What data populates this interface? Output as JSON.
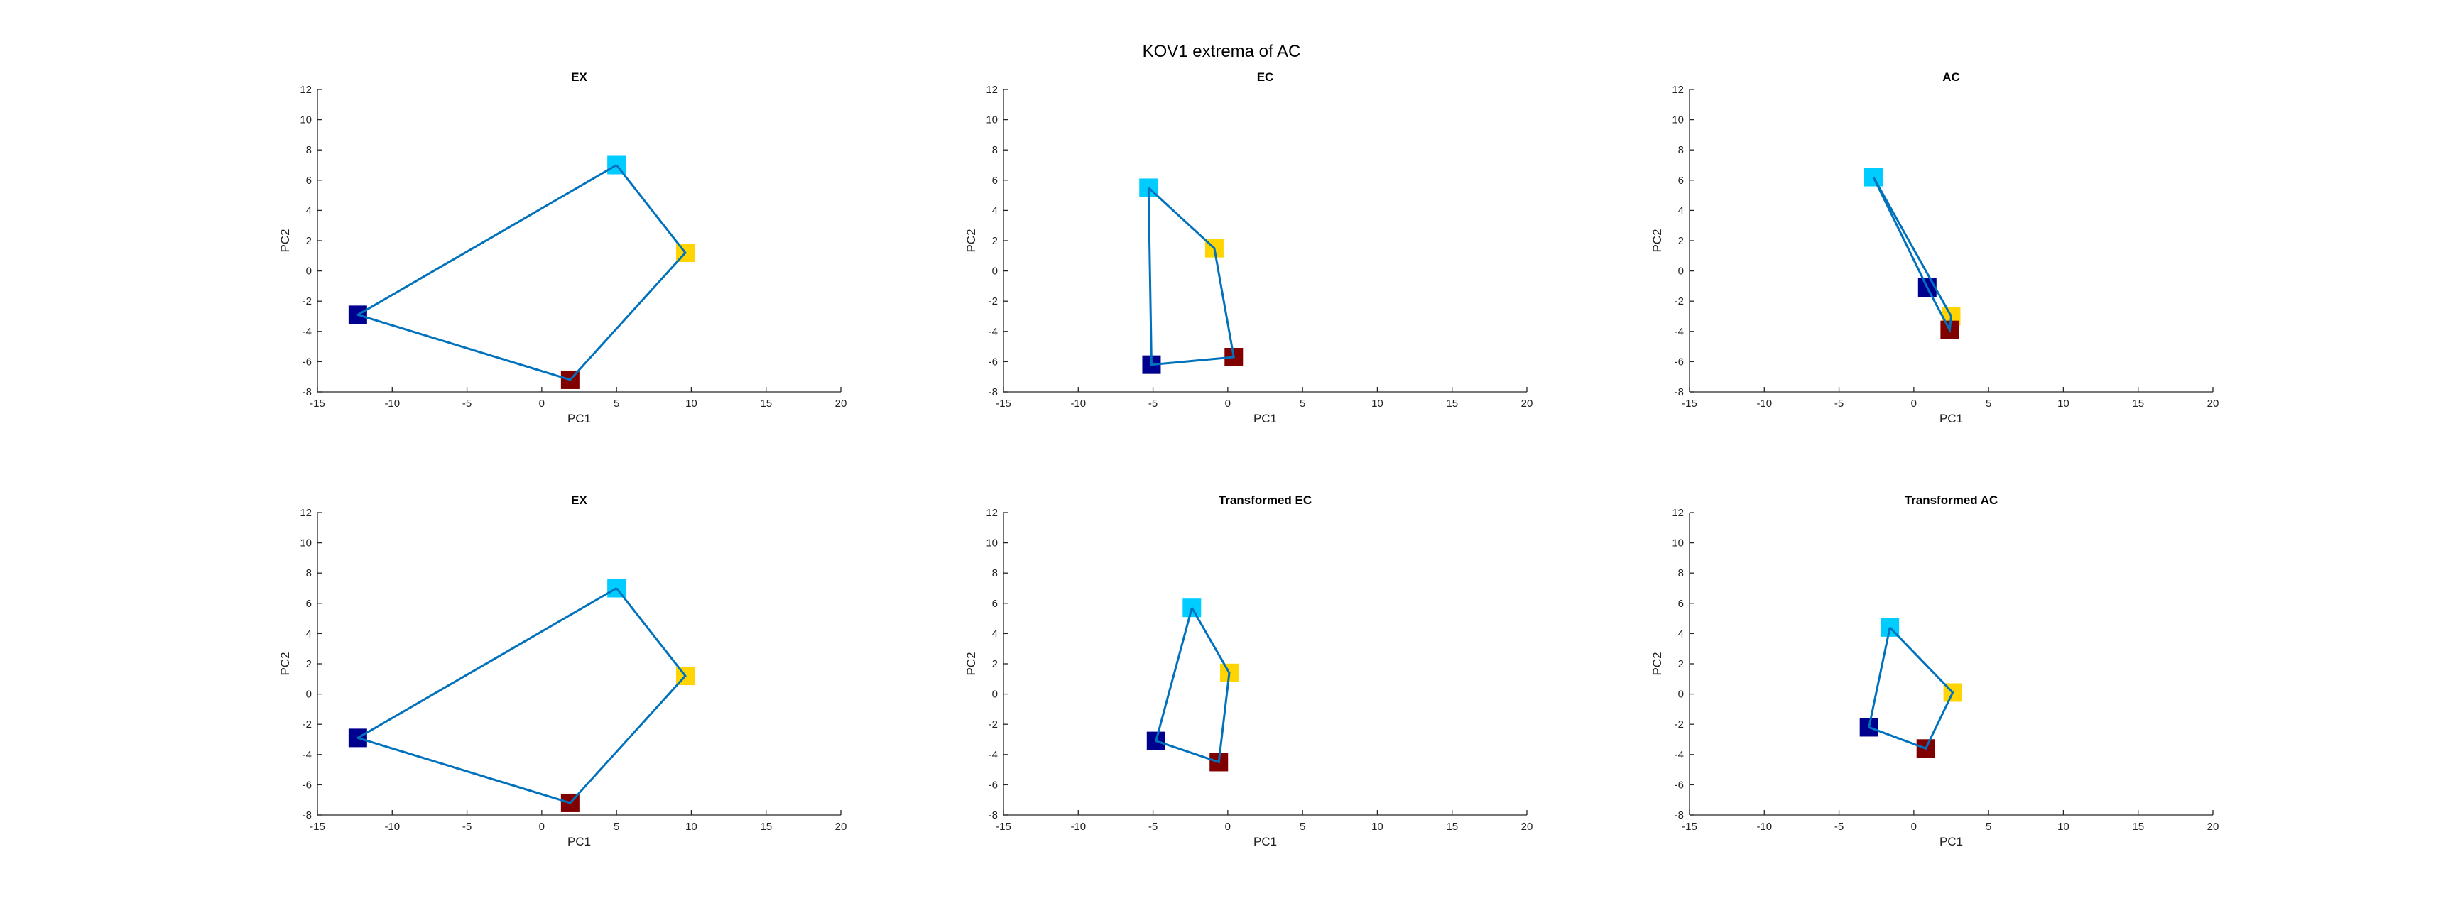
{
  "figure": {
    "suptitle": "KOV1 extrema of AC"
  },
  "chart_data": [
    {
      "type": "scatter",
      "title": "EX",
      "xlabel": "PC1",
      "ylabel": "PC2",
      "xlim": [
        -15,
        20
      ],
      "ylim": [
        -8,
        12
      ],
      "xticks": [
        "-15",
        "-10",
        "-5",
        "0",
        "5",
        "10",
        "15",
        "20"
      ],
      "yticks": [
        "-8",
        "-6",
        "-4",
        "-2",
        "0",
        "2",
        "4",
        "6",
        "8",
        "10",
        "12"
      ],
      "line_color": "#0072bd",
      "points": [
        {
          "x": 5.0,
          "y": 7.0,
          "color": "#00ccff"
        },
        {
          "x": 9.6,
          "y": 1.2,
          "color": "#ffd400"
        },
        {
          "x": 1.9,
          "y": -7.2,
          "color": "#800000"
        },
        {
          "x": -12.3,
          "y": -2.9,
          "color": "#00008f"
        }
      ]
    },
    {
      "type": "scatter",
      "title": "EC",
      "xlabel": "PC1",
      "ylabel": "PC2",
      "xlim": [
        -15,
        20
      ],
      "ylim": [
        -8,
        12
      ],
      "xticks": [
        "-15",
        "-10",
        "-5",
        "0",
        "5",
        "10",
        "15",
        "20"
      ],
      "yticks": [
        "-8",
        "-6",
        "-4",
        "-2",
        "0",
        "2",
        "4",
        "6",
        "8",
        "10",
        "12"
      ],
      "line_color": "#0072bd",
      "points": [
        {
          "x": -5.3,
          "y": 5.5,
          "color": "#00ccff"
        },
        {
          "x": -0.9,
          "y": 1.5,
          "color": "#ffd400"
        },
        {
          "x": 0.4,
          "y": -5.7,
          "color": "#800000"
        },
        {
          "x": -5.1,
          "y": -6.2,
          "color": "#00008f"
        }
      ]
    },
    {
      "type": "scatter",
      "title": "AC",
      "xlabel": "PC1",
      "ylabel": "PC2",
      "xlim": [
        -15,
        20
      ],
      "ylim": [
        -8,
        12
      ],
      "xticks": [
        "-15",
        "-10",
        "-5",
        "0",
        "5",
        "10",
        "15",
        "20"
      ],
      "yticks": [
        "-8",
        "-6",
        "-4",
        "-2",
        "0",
        "2",
        "4",
        "6",
        "8",
        "10",
        "12"
      ],
      "line_color": "#0072bd",
      "points": [
        {
          "x": -2.7,
          "y": 6.2,
          "color": "#00ccff"
        },
        {
          "x": 2.5,
          "y": -3.0,
          "color": "#ffd400"
        },
        {
          "x": 2.4,
          "y": -3.9,
          "color": "#800000"
        },
        {
          "x": 0.9,
          "y": -1.1,
          "color": "#00008f"
        }
      ]
    },
    {
      "type": "scatter",
      "title": "EX",
      "xlabel": "PC1",
      "ylabel": "PC2",
      "xlim": [
        -15,
        20
      ],
      "ylim": [
        -8,
        12
      ],
      "xticks": [
        "-15",
        "-10",
        "-5",
        "0",
        "5",
        "10",
        "15",
        "20"
      ],
      "yticks": [
        "-8",
        "-6",
        "-4",
        "-2",
        "0",
        "2",
        "4",
        "6",
        "8",
        "10",
        "12"
      ],
      "line_color": "#0072bd",
      "points": [
        {
          "x": 5.0,
          "y": 7.0,
          "color": "#00ccff"
        },
        {
          "x": 9.6,
          "y": 1.2,
          "color": "#ffd400"
        },
        {
          "x": 1.9,
          "y": -7.2,
          "color": "#800000"
        },
        {
          "x": -12.3,
          "y": -2.9,
          "color": "#00008f"
        }
      ]
    },
    {
      "type": "scatter",
      "title": "Transformed EC",
      "xlabel": "PC1",
      "ylabel": "PC2",
      "xlim": [
        -15,
        20
      ],
      "ylim": [
        -8,
        12
      ],
      "xticks": [
        "-15",
        "-10",
        "-5",
        "0",
        "5",
        "10",
        "15",
        "20"
      ],
      "yticks": [
        "-8",
        "-6",
        "-4",
        "-2",
        "0",
        "2",
        "4",
        "6",
        "8",
        "10",
        "12"
      ],
      "line_color": "#0072bd",
      "points": [
        {
          "x": -2.4,
          "y": 5.7,
          "color": "#00ccff"
        },
        {
          "x": 0.1,
          "y": 1.4,
          "color": "#ffd400"
        },
        {
          "x": -0.6,
          "y": -4.5,
          "color": "#800000"
        },
        {
          "x": -4.8,
          "y": -3.1,
          "color": "#00008f"
        }
      ]
    },
    {
      "type": "scatter",
      "title": "Transformed AC",
      "xlabel": "PC1",
      "ylabel": "PC2",
      "xlim": [
        -15,
        20
      ],
      "ylim": [
        -8,
        12
      ],
      "xticks": [
        "-15",
        "-10",
        "-5",
        "0",
        "5",
        "10",
        "15",
        "20"
      ],
      "yticks": [
        "-8",
        "-6",
        "-4",
        "-2",
        "0",
        "2",
        "4",
        "6",
        "8",
        "10",
        "12"
      ],
      "line_color": "#0072bd",
      "points": [
        {
          "x": -1.6,
          "y": 4.4,
          "color": "#00ccff"
        },
        {
          "x": 2.6,
          "y": 0.1,
          "color": "#ffd400"
        },
        {
          "x": 0.8,
          "y": -3.6,
          "color": "#800000"
        },
        {
          "x": -3.0,
          "y": -2.2,
          "color": "#00008f"
        }
      ]
    }
  ]
}
